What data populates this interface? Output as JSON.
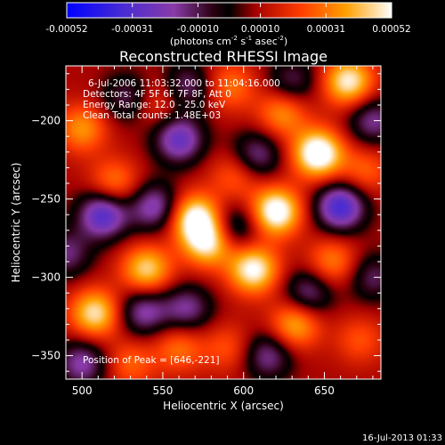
{
  "chart_data": {
    "type": "heatmap",
    "title": "Reconstructed RHESSI Image",
    "xlabel": "Heliocentric X (arcsec)",
    "ylabel": "Heliocentric Y (arcsec)",
    "xlim": [
      490,
      685
    ],
    "ylim": [
      -365,
      -165
    ],
    "x_ticks": [
      500,
      550,
      600,
      650
    ],
    "y_ticks": [
      -200,
      -250,
      -300,
      -350
    ],
    "colorbar": {
      "ticks": [
        "-0.00052",
        "-0.00031",
        "-0.00010",
        "0.00010",
        "0.00031",
        "0.00052"
      ],
      "range": [
        -0.00052,
        0.00052
      ],
      "label_main": "(photons cm",
      "label_exp1": "-2",
      "label_mid1": " s",
      "label_exp2": "-1",
      "label_mid2": " asec",
      "label_exp3": "-2",
      "label_end": ")"
    },
    "annotations": {
      "time": "6-Jul-2006 11:03:32.000 to 11:04:16.000",
      "detectors": "Detectors: 4F 5F 6F 7F 8F, Att 0",
      "energy": "Energy Range: 12.0 - 25.0 keV",
      "clean": "Clean     Total counts: 1.48E+03",
      "peak": "Position of Peak = [646,-221]"
    },
    "peak": [
      646,
      -221
    ],
    "blobs": [
      {
        "x": 646,
        "y": -221,
        "v": 1.0
      },
      {
        "x": 620,
        "y": -258,
        "v": 0.95
      },
      {
        "x": 570,
        "y": -262,
        "v": 0.85
      },
      {
        "x": 578,
        "y": -278,
        "v": 0.75
      },
      {
        "x": 606,
        "y": -295,
        "v": 0.85
      },
      {
        "x": 540,
        "y": -295,
        "v": 0.7
      },
      {
        "x": 508,
        "y": -323,
        "v": 0.75
      },
      {
        "x": 632,
        "y": -330,
        "v": 0.6
      },
      {
        "x": 665,
        "y": -175,
        "v": 0.8
      },
      {
        "x": 624,
        "y": -195,
        "v": 0.5
      },
      {
        "x": 500,
        "y": -205,
        "v": 0.5
      },
      {
        "x": 520,
        "y": -240,
        "v": 0.45
      },
      {
        "x": 655,
        "y": -290,
        "v": 0.45
      },
      {
        "x": 560,
        "y": -345,
        "v": 0.4
      },
      {
        "x": 595,
        "y": -235,
        "v": 0.35
      },
      {
        "x": 592,
        "y": -178,
        "v": 0.4
      },
      {
        "x": 547,
        "y": -188,
        "v": 0.3
      },
      {
        "x": 530,
        "y": -355,
        "v": 0.35
      },
      {
        "x": 675,
        "y": -232,
        "v": 0.35
      },
      {
        "x": 590,
        "y": -345,
        "v": 0.3
      },
      {
        "x": 672,
        "y": -340,
        "v": 0.3
      },
      {
        "x": 513,
        "y": -260,
        "v": -0.8
      },
      {
        "x": 560,
        "y": -212,
        "v": -0.7
      },
      {
        "x": 545,
        "y": -255,
        "v": -0.6
      },
      {
        "x": 608,
        "y": -222,
        "v": -0.5
      },
      {
        "x": 595,
        "y": -268,
        "v": -0.45
      },
      {
        "x": 538,
        "y": -322,
        "v": -0.55
      },
      {
        "x": 660,
        "y": -255,
        "v": -0.85
      },
      {
        "x": 565,
        "y": -320,
        "v": -0.5
      },
      {
        "x": 640,
        "y": -310,
        "v": -0.5
      },
      {
        "x": 500,
        "y": -355,
        "v": -0.55
      },
      {
        "x": 615,
        "y": -350,
        "v": -0.5
      },
      {
        "x": 565,
        "y": -178,
        "v": -0.45
      },
      {
        "x": 630,
        "y": -175,
        "v": -0.4
      },
      {
        "x": 680,
        "y": -200,
        "v": -0.5
      },
      {
        "x": 528,
        "y": -185,
        "v": -0.4
      },
      {
        "x": 490,
        "y": -285,
        "v": -0.45
      },
      {
        "x": 680,
        "y": -300,
        "v": -0.4
      }
    ]
  },
  "footer": {
    "timestamp": "16-Jul-2013 01:33"
  }
}
